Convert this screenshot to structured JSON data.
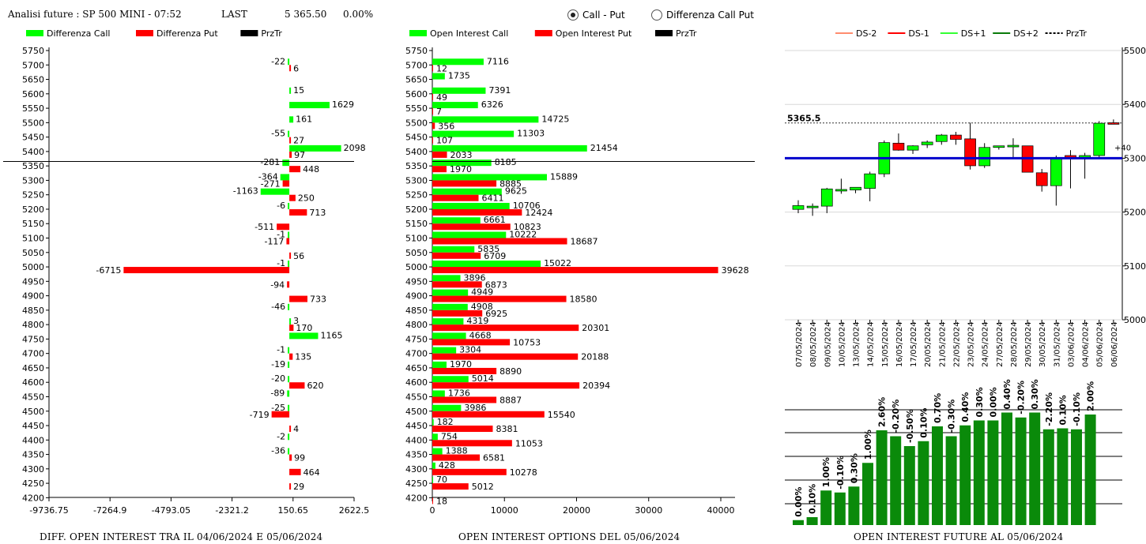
{
  "header": {
    "title": "Analisi future : SP 500 MINI - 07:52",
    "last_label": "LAST",
    "last_value": "5 365.50",
    "change": "0.00%"
  },
  "radio": {
    "option1": "Call - Put",
    "option2": "Differenza Call Put",
    "selected": "Call - Put"
  },
  "colors": {
    "green": "#00ff00",
    "red": "#ff0000",
    "black": "#000000",
    "blue": "#0000cc",
    "dark_green": "#0a8a0a"
  },
  "footers": {
    "left": "DIFF. OPEN INTEREST TRA IL 04/06/2024 E 05/06/2024",
    "middle": "OPEN INTEREST OPTIONS DEL 05/06/2024",
    "right": "OPEN INTEREST FUTURE AL 05/06/2024"
  },
  "chart_data": [
    {
      "type": "bar",
      "orientation": "horizontal",
      "legend": [
        "Differenza Call",
        "Differenza Put",
        "PrzTr"
      ],
      "strikes": [
        5750,
        5700,
        5650,
        5600,
        5550,
        5500,
        5450,
        5400,
        5350,
        5300,
        5250,
        5200,
        5150,
        5100,
        5050,
        5000,
        4950,
        4900,
        4850,
        4800,
        4750,
        4700,
        4650,
        4600,
        4550,
        4500,
        4450,
        4400,
        4350,
        4300,
        4250,
        4200
      ],
      "call_diff": [
        null,
        -22,
        null,
        15,
        1629,
        161,
        -55,
        2098,
        -281,
        -364,
        -1163,
        -6,
        null,
        -1,
        null,
        -1,
        null,
        null,
        -46,
        3,
        1165,
        -1,
        -19,
        -20,
        -89,
        -25,
        null,
        -2,
        -36,
        null,
        null,
        null
      ],
      "put_diff": [
        null,
        6,
        null,
        null,
        null,
        null,
        27,
        97,
        448,
        -271,
        250,
        713,
        -511,
        -117,
        56,
        -6715,
        -94,
        733,
        null,
        170,
        null,
        135,
        null,
        620,
        null,
        -719,
        4,
        null,
        99,
        464,
        29,
        null
      ],
      "xticks": [
        "-9736.75",
        "-7264.9",
        "-4793.05",
        "-2321.2",
        "150.65",
        "2622.5"
      ],
      "xlim": [
        -9736.75,
        2622.5
      ],
      "przTr": 5365.5
    },
    {
      "type": "bar",
      "orientation": "horizontal",
      "legend": [
        "Open Interest Call",
        "Open Interest Put",
        "PrzTr"
      ],
      "strikes": [
        5750,
        5700,
        5650,
        5600,
        5550,
        5500,
        5450,
        5400,
        5350,
        5300,
        5250,
        5200,
        5150,
        5100,
        5050,
        5000,
        4950,
        4900,
        4850,
        4800,
        4750,
        4700,
        4650,
        4600,
        4550,
        4500,
        4450,
        4400,
        4350,
        4300,
        4250,
        4200
      ],
      "call_oi": [
        null,
        7116,
        1735,
        7391,
        6326,
        14725,
        11303,
        21454,
        8185,
        15889,
        9625,
        10706,
        6661,
        10222,
        5835,
        15022,
        3896,
        4949,
        4908,
        4319,
        4668,
        3304,
        1970,
        5014,
        1736,
        3986,
        182,
        754,
        1388,
        428,
        70,
        null
      ],
      "put_oi": [
        null,
        12,
        null,
        49,
        7,
        356,
        107,
        2033,
        1970,
        8885,
        6411,
        12424,
        10823,
        18687,
        6709,
        39628,
        6873,
        18580,
        6925,
        20301,
        10753,
        20188,
        8890,
        20394,
        8887,
        15540,
        8381,
        11053,
        6581,
        10278,
        5012,
        18
      ],
      "xticks": [
        "0",
        "10000",
        "20000",
        "30000",
        "40000"
      ],
      "xlim": [
        0,
        40000
      ],
      "przTr": 5365.5
    },
    {
      "type": "candlestick",
      "legend": [
        "DS-2",
        "DS-1",
        "DS+1",
        "DS+2",
        "PrzTr"
      ],
      "dates": [
        "07/05/2024",
        "08/05/2024",
        "09/05/2024",
        "10/05/2024",
        "13/05/2024",
        "14/05/2024",
        "15/05/2024",
        "16/05/2024",
        "17/05/2024",
        "20/05/2024",
        "21/05/2024",
        "22/05/2024",
        "23/05/2024",
        "24/05/2024",
        "27/05/2024",
        "28/05/2024",
        "29/05/2024",
        "30/05/2024",
        "31/05/2024",
        "03/06/2024",
        "04/06/2024",
        "05/06/2024",
        "06/06/2024"
      ],
      "ohlc": [
        [
          5205,
          5222,
          5198,
          5212
        ],
        [
          5210,
          5216,
          5193,
          5211
        ],
        [
          5211,
          5245,
          5198,
          5243
        ],
        [
          5240,
          5262,
          5234,
          5242
        ],
        [
          5241,
          5246,
          5235,
          5246
        ],
        [
          5244,
          5275,
          5220,
          5271
        ],
        [
          5271,
          5333,
          5265,
          5329
        ],
        [
          5328,
          5346,
          5314,
          5315
        ],
        [
          5315,
          5324,
          5308,
          5323
        ],
        [
          5325,
          5333,
          5319,
          5330
        ],
        [
          5331,
          5345,
          5325,
          5343
        ],
        [
          5343,
          5349,
          5325,
          5335
        ],
        [
          5336,
          5366,
          5279,
          5286
        ],
        [
          5286,
          5328,
          5282,
          5320
        ],
        [
          5320,
          5323,
          5316,
          5323
        ],
        [
          5323,
          5337,
          5300,
          5324
        ],
        [
          5323,
          5323,
          5275,
          5274
        ],
        [
          5273,
          5280,
          5238,
          5249
        ],
        [
          5249,
          5305,
          5212,
          5300
        ],
        [
          5305,
          5315,
          5244,
          5300
        ],
        [
          5300,
          5310,
          5262,
          5305
        ],
        [
          5305,
          5369,
          5300,
          5365
        ],
        [
          5366,
          5372,
          5363,
          5365
        ]
      ],
      "ylim": [
        5000,
        5500
      ],
      "yticks": [
        "5000",
        "5100",
        "5200",
        "5300",
        "5400",
        "5500"
      ],
      "last_label": "5365.5",
      "last_value": 5365.5,
      "ds_value": 5300,
      "ds_label": "+40"
    },
    {
      "type": "bar",
      "values": [
        0.5,
        0.8,
        3.5,
        3.3,
        3.9,
        6.3,
        9.6,
        9.0,
        8.0,
        8.5,
        10.0,
        9.0,
        10.1,
        10.6,
        10.6,
        11.4,
        10.9,
        11.4,
        9.7,
        9.8,
        9.7,
        11.2
      ],
      "labels": [
        "0.00%",
        "0.10%",
        "1.00%",
        "-0.10%",
        "0.30%",
        "1.00%",
        "2.60%",
        "-0.20%",
        "-0.50%",
        "0.10%",
        "0.70%",
        "-0.30%",
        "0.40%",
        "0.30%",
        "0.00%",
        "0.40%",
        "-0.20%",
        "0.30%",
        "-2.20%",
        "0.10%",
        "-0.10%",
        "2.00%"
      ]
    }
  ]
}
